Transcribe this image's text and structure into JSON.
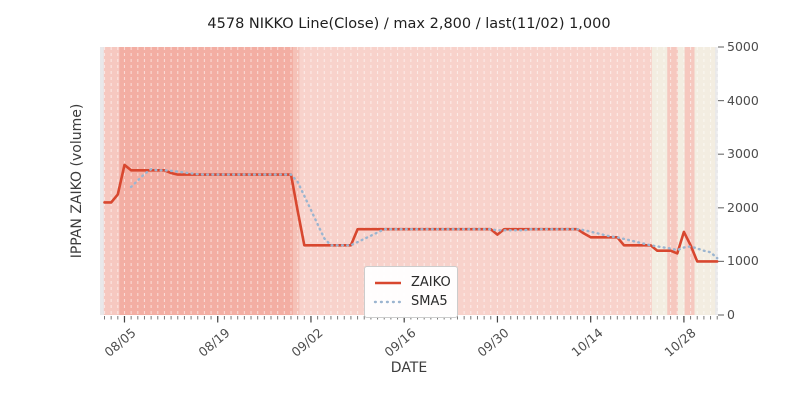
{
  "title": "4578 NIKKO Line(Close) / max 2,800 / last(11/02) 1,000",
  "axes": {
    "ylabel": "IPPAN ZAIKO (volume)",
    "xlabel": "DATE",
    "y_tick_labels": [
      "0",
      "1000",
      "2000",
      "3000",
      "4000",
      "5000"
    ],
    "x_tick_labels": [
      "08/05",
      "08/19",
      "09/02",
      "09/16",
      "09/30",
      "10/14",
      "10/28"
    ]
  },
  "legend": {
    "items": [
      {
        "label": "ZAIKO",
        "style": "solid",
        "color": "#d8472f"
      },
      {
        "label": "SMA5",
        "style": "dotted",
        "color": "#9bb5d0"
      }
    ]
  },
  "colors": {
    "plot_bg": "#e8e8ea",
    "gridline": "#ffffff",
    "tick": "#777777",
    "major_tick": "#444444"
  },
  "chart_data": {
    "type": "line",
    "title": "4578 NIKKO Line(Close) / max 2,800 / last(11/02) 1,000",
    "xlabel": "DATE",
    "ylabel": "IPPAN ZAIKO (volume)",
    "ylim": [
      0,
      5000
    ],
    "y_tick_values": [
      0,
      1000,
      2000,
      3000,
      4000,
      5000
    ],
    "grid": "vertical-dashed-white-daily",
    "legend_position": "lower-center",
    "max_value": 2800,
    "last_date": "11/02",
    "last_value": 1000,
    "dates": [
      "08/02",
      "08/03",
      "08/04",
      "08/05",
      "08/06",
      "08/07",
      "08/08",
      "08/09",
      "08/10",
      "08/11",
      "08/12",
      "08/13",
      "08/14",
      "08/15",
      "08/16",
      "08/17",
      "08/18",
      "08/19",
      "08/20",
      "08/21",
      "08/22",
      "08/23",
      "08/24",
      "08/25",
      "08/26",
      "08/27",
      "08/28",
      "08/29",
      "08/30",
      "08/31",
      "09/01",
      "09/02",
      "09/03",
      "09/04",
      "09/05",
      "09/06",
      "09/07",
      "09/08",
      "09/09",
      "09/10",
      "09/11",
      "09/12",
      "09/13",
      "09/14",
      "09/15",
      "09/16",
      "09/17",
      "09/18",
      "09/19",
      "09/20",
      "09/21",
      "09/22",
      "09/23",
      "09/24",
      "09/25",
      "09/26",
      "09/27",
      "09/28",
      "09/29",
      "09/30",
      "10/01",
      "10/02",
      "10/03",
      "10/04",
      "10/05",
      "10/06",
      "10/07",
      "10/08",
      "10/09",
      "10/10",
      "10/11",
      "10/12",
      "10/13",
      "10/14",
      "10/15",
      "10/16",
      "10/17",
      "10/18",
      "10/19",
      "10/20",
      "10/21",
      "10/22",
      "10/23",
      "10/24",
      "10/25",
      "10/26",
      "10/27",
      "10/28",
      "10/29",
      "10/30",
      "10/31",
      "11/01",
      "11/02"
    ],
    "x_major_ticks": [
      {
        "day": 3,
        "label": "08/05"
      },
      {
        "day": 17,
        "label": "08/19"
      },
      {
        "day": 31,
        "label": "09/02"
      },
      {
        "day": 45,
        "label": "09/16"
      },
      {
        "day": 59,
        "label": "09/30"
      },
      {
        "day": 73,
        "label": "10/14"
      },
      {
        "day": 87,
        "label": "10/28"
      }
    ],
    "series": [
      {
        "name": "ZAIKO",
        "style": "solid",
        "color": "#d8472f",
        "width": 2.6,
        "start_day_index": 0,
        "values": [
          2100,
          2100,
          2250,
          2800,
          2700,
          2700,
          2700,
          2700,
          2700,
          2700,
          2650,
          2620,
          2620,
          2620,
          2620,
          2620,
          2620,
          2620,
          2620,
          2620,
          2620,
          2620,
          2620,
          2620,
          2620,
          2620,
          2620,
          2620,
          2620,
          1950,
          1300,
          1300,
          1300,
          1300,
          1300,
          1300,
          1300,
          1300,
          1600,
          1600,
          1600,
          1600,
          1600,
          1600,
          1600,
          1600,
          1600,
          1600,
          1600,
          1600,
          1600,
          1600,
          1600,
          1600,
          1600,
          1600,
          1600,
          1600,
          1600,
          1500,
          1600,
          1600,
          1600,
          1600,
          1600,
          1600,
          1600,
          1600,
          1600,
          1600,
          1600,
          1600,
          1520,
          1450,
          1450,
          1450,
          1450,
          1450,
          1300,
          1300,
          1300,
          1300,
          1300,
          1200,
          1200,
          1200,
          1150,
          1550,
          1300,
          1000,
          1000,
          1000,
          1000
        ]
      },
      {
        "name": "SMA5",
        "style": "dotted",
        "color": "#9bb5d0",
        "width": 2.4,
        "start_day_index": 4,
        "values": [
          2390,
          2510,
          2630,
          2720,
          2700,
          2700,
          2690,
          2674,
          2658,
          2642,
          2626,
          2620,
          2620,
          2620,
          2620,
          2620,
          2620,
          2620,
          2620,
          2620,
          2620,
          2620,
          2620,
          2620,
          2620,
          2486,
          2222,
          1958,
          1694,
          1430,
          1300,
          1300,
          1300,
          1300,
          1360,
          1420,
          1480,
          1540,
          1600,
          1600,
          1600,
          1600,
          1600,
          1600,
          1600,
          1600,
          1600,
          1600,
          1600,
          1600,
          1600,
          1600,
          1600,
          1600,
          1600,
          1580,
          1580,
          1580,
          1580,
          1580,
          1600,
          1600,
          1600,
          1600,
          1600,
          1600,
          1600,
          1600,
          1584,
          1554,
          1524,
          1494,
          1464,
          1450,
          1420,
          1390,
          1360,
          1330,
          1300,
          1280,
          1260,
          1240,
          1210,
          1260,
          1280,
          1240,
          1200,
          1170,
          1060
        ]
      }
    ],
    "background_bands": [
      {
        "from_day": -0.1,
        "to_day": 2.2,
        "color": "#f6c8c0"
      },
      {
        "from_day": 2.2,
        "to_day": 28.3,
        "color": "#f3aea3"
      },
      {
        "from_day": 28.3,
        "to_day": 29.3,
        "color": "#f5c1b7"
      },
      {
        "from_day": 29.3,
        "to_day": 82.2,
        "color": "#f8d2cb"
      },
      {
        "from_day": 82.2,
        "to_day": 84.5,
        "color": "#f3ede1"
      },
      {
        "from_day": 84.5,
        "to_day": 86.1,
        "color": "#f6c8bf"
      },
      {
        "from_day": 86.1,
        "to_day": 87.1,
        "color": "#f3ede1"
      },
      {
        "from_day": 87.1,
        "to_day": 88.6,
        "color": "#f6c8bf"
      },
      {
        "from_day": 88.6,
        "to_day": 91.7,
        "color": "#f3ede1"
      }
    ]
  }
}
